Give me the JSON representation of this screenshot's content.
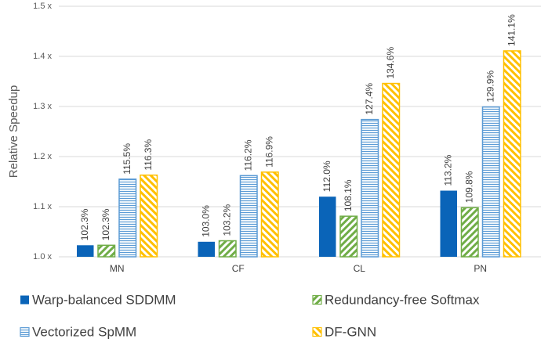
{
  "chart_data": {
    "type": "bar",
    "y_label": "Relative Speedup",
    "categories": [
      "MN",
      "CF",
      "CL",
      "PN"
    ],
    "series": [
      {
        "name": "Warp-balanced SDDMM",
        "color": "#0a64b8",
        "hatch": "solid",
        "values": [
          1.023,
          1.03,
          1.12,
          1.132
        ],
        "value_labels": [
          "102.3%",
          "103.0%",
          "112.0%",
          "113.2%"
        ]
      },
      {
        "name": "Redundancy-free Softmax",
        "color": "#70ad47",
        "hatch": "diagonal",
        "values": [
          1.023,
          1.032,
          1.081,
          1.098
        ],
        "value_labels": [
          "102.3%",
          "103.2%",
          "108.1%",
          "109.8%"
        ]
      },
      {
        "name": "Vectorized SpMM",
        "color": "#5b9bd5",
        "hatch": "horizontal",
        "values": [
          1.155,
          1.162,
          1.274,
          1.299
        ],
        "value_labels": [
          "115.5%",
          "116.2%",
          "127.4%",
          "129.9%"
        ]
      },
      {
        "name": "DF-GNN",
        "color": "#ffc000",
        "hatch": "diagonal-reverse",
        "values": [
          1.163,
          1.169,
          1.346,
          1.411
        ],
        "value_labels": [
          "116.3%",
          "116.9%",
          "134.6%",
          "141.1%"
        ]
      }
    ],
    "ylim": [
      1.0,
      1.5
    ],
    "yticks": [
      {
        "value": 1.0,
        "label": "1.0 x"
      },
      {
        "value": 1.1,
        "label": "1.1 x"
      },
      {
        "value": 1.2,
        "label": "1.2 x"
      },
      {
        "value": 1.3,
        "label": "1.3 x"
      },
      {
        "value": 1.4,
        "label": "1.4 x"
      },
      {
        "value": 1.5,
        "label": "1.5 x"
      }
    ],
    "grid": true,
    "legend": "bottom"
  }
}
